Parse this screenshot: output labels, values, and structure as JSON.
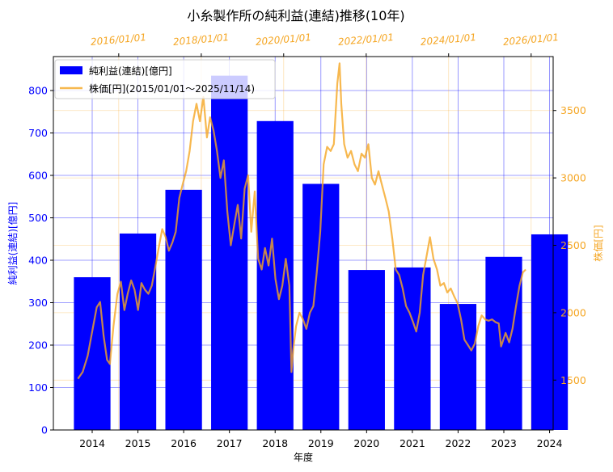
{
  "chart_data": {
    "type": "bar+line",
    "title": "小糸製作所の純利益(連結)推移(10年)",
    "xlabel": "年度",
    "ylabel_left": "純利益(連結)[億円]",
    "ylabel_right": "株価[円]",
    "categories": [
      "2014",
      "2015",
      "2016",
      "2017",
      "2018",
      "2019",
      "2020",
      "2021",
      "2022",
      "2023",
      "2024"
    ],
    "ylim_left": [
      0,
      880
    ],
    "yticks_left": [
      0,
      100,
      200,
      300,
      400,
      500,
      600,
      700,
      800
    ],
    "ylim_right": [
      1130,
      3900
    ],
    "yticks_right": [
      1500,
      2000,
      2500,
      3000,
      3500
    ],
    "top_date_ticks": [
      "2016/01/01",
      "2018/01/01",
      "2020/01/01",
      "2022/01/01",
      "2024/01/01",
      "2026/01/01"
    ],
    "grid": true,
    "legend_position": "top-left",
    "series": [
      {
        "name": "純利益(連結)[億円]",
        "type": "bar",
        "color": "#0000ff",
        "values": [
          360,
          463,
          566,
          835,
          728,
          580,
          377,
          383,
          297,
          408,
          461
        ]
      },
      {
        "name": "株価[円](2015/01/01〜2025/11/14)",
        "type": "line",
        "color": "#f5a623",
        "points": [
          [
            "2015/01/05",
            1510
          ],
          [
            "2015/02/15",
            1560
          ],
          [
            "2015/04/01",
            1680
          ],
          [
            "2015/05/15",
            1880
          ],
          [
            "2015/06/20",
            2040
          ],
          [
            "2015/07/20",
            2080
          ],
          [
            "2015/08/20",
            1830
          ],
          [
            "2015/09/20",
            1650
          ],
          [
            "2015/10/15",
            1620
          ],
          [
            "2015/11/15",
            1900
          ],
          [
            "2015/12/20",
            2140
          ],
          [
            "2016/01/20",
            2230
          ],
          [
            "2016/02/20",
            2020
          ],
          [
            "2016/03/20",
            2140
          ],
          [
            "2016/04/20",
            2240
          ],
          [
            "2016/05/20",
            2170
          ],
          [
            "2016/06/20",
            2020
          ],
          [
            "2016/07/20",
            2220
          ],
          [
            "2016/08/20",
            2170
          ],
          [
            "2016/09/20",
            2140
          ],
          [
            "2016/10/20",
            2200
          ],
          [
            "2016/11/20",
            2340
          ],
          [
            "2016/12/20",
            2480
          ],
          [
            "2017/01/20",
            2620
          ],
          [
            "2017/02/20",
            2560
          ],
          [
            "2017/03/20",
            2460
          ],
          [
            "2017/04/20",
            2520
          ],
          [
            "2017/05/20",
            2600
          ],
          [
            "2017/06/20",
            2850
          ],
          [
            "2017/07/20",
            2950
          ],
          [
            "2017/08/20",
            3050
          ],
          [
            "2017/09/20",
            3200
          ],
          [
            "2017/10/20",
            3420
          ],
          [
            "2017/11/20",
            3550
          ],
          [
            "2017/12/20",
            3420
          ],
          [
            "2018/01/20",
            3600
          ],
          [
            "2018/02/20",
            3300
          ],
          [
            "2018/03/20",
            3450
          ],
          [
            "2018/04/20",
            3350
          ],
          [
            "2018/05/20",
            3200
          ],
          [
            "2018/06/20",
            3000
          ],
          [
            "2018/07/20",
            3130
          ],
          [
            "2018/08/20",
            2750
          ],
          [
            "2018/09/20",
            2500
          ],
          [
            "2018/10/20",
            2650
          ],
          [
            "2018/11/20",
            2800
          ],
          [
            "2018/12/20",
            2550
          ],
          [
            "2019/01/20",
            2920
          ],
          [
            "2019/02/20",
            3020
          ],
          [
            "2019/03/20",
            2600
          ],
          [
            "2019/04/20",
            2900
          ],
          [
            "2019/05/20",
            2400
          ],
          [
            "2019/06/20",
            2320
          ],
          [
            "2019/07/20",
            2480
          ],
          [
            "2019/08/20",
            2350
          ],
          [
            "2019/09/20",
            2550
          ],
          [
            "2019/10/20",
            2250
          ],
          [
            "2019/11/20",
            2100
          ],
          [
            "2019/12/20",
            2200
          ],
          [
            "2020/01/20",
            2400
          ],
          [
            "2020/02/20",
            2200
          ],
          [
            "2020/03/10",
            1560
          ],
          [
            "2020/03/25",
            1720
          ],
          [
            "2020/04/20",
            1900
          ],
          [
            "2020/05/20",
            2000
          ],
          [
            "2020/06/20",
            1950
          ],
          [
            "2020/07/20",
            1880
          ],
          [
            "2020/08/20",
            2000
          ],
          [
            "2020/09/20",
            2050
          ],
          [
            "2020/10/20",
            2300
          ],
          [
            "2020/11/20",
            2600
          ],
          [
            "2020/12/20",
            3100
          ],
          [
            "2021/01/20",
            3230
          ],
          [
            "2021/02/20",
            3200
          ],
          [
            "2021/03/20",
            3250
          ],
          [
            "2021/04/20",
            3700
          ],
          [
            "2021/05/10",
            3850
          ],
          [
            "2021/05/25",
            3550
          ],
          [
            "2021/06/20",
            3250
          ],
          [
            "2021/07/20",
            3150
          ],
          [
            "2021/08/20",
            3200
          ],
          [
            "2021/09/20",
            3100
          ],
          [
            "2021/10/20",
            3050
          ],
          [
            "2021/11/20",
            3180
          ],
          [
            "2021/12/20",
            3150
          ],
          [
            "2022/01/20",
            3250
          ],
          [
            "2022/02/20",
            3000
          ],
          [
            "2022/03/20",
            2950
          ],
          [
            "2022/04/20",
            3050
          ],
          [
            "2022/05/20",
            2950
          ],
          [
            "2022/06/20",
            2850
          ],
          [
            "2022/07/20",
            2750
          ],
          [
            "2022/08/20",
            2550
          ],
          [
            "2022/09/20",
            2320
          ],
          [
            "2022/10/20",
            2280
          ],
          [
            "2022/11/20",
            2180
          ],
          [
            "2022/12/20",
            2050
          ],
          [
            "2023/01/20",
            2000
          ],
          [
            "2023/02/20",
            1930
          ],
          [
            "2023/03/20",
            1860
          ],
          [
            "2023/04/20",
            2000
          ],
          [
            "2023/05/20",
            2280
          ],
          [
            "2023/06/20",
            2420
          ],
          [
            "2023/07/20",
            2560
          ],
          [
            "2023/08/20",
            2400
          ],
          [
            "2023/09/20",
            2320
          ],
          [
            "2023/10/20",
            2200
          ],
          [
            "2023/11/20",
            2220
          ],
          [
            "2023/12/20",
            2150
          ],
          [
            "2024/01/20",
            2180
          ],
          [
            "2024/02/20",
            2120
          ],
          [
            "2024/03/20",
            2070
          ],
          [
            "2024/04/20",
            1950
          ],
          [
            "2024/05/20",
            1800
          ],
          [
            "2024/06/20",
            1760
          ],
          [
            "2024/07/20",
            1720
          ],
          [
            "2024/08/20",
            1770
          ],
          [
            "2024/09/20",
            1900
          ],
          [
            "2024/10/20",
            1980
          ],
          [
            "2024/11/20",
            1950
          ],
          [
            "2024/12/20",
            1940
          ],
          [
            "2025/01/20",
            1950
          ],
          [
            "2025/02/20",
            1930
          ],
          [
            "2025/03/20",
            1920
          ],
          [
            "2025/04/10",
            1750
          ],
          [
            "2025/05/20",
            1850
          ],
          [
            "2025/06/20",
            1780
          ],
          [
            "2025/07/20",
            1880
          ],
          [
            "2025/08/20",
            2050
          ],
          [
            "2025/09/20",
            2200
          ],
          [
            "2025/10/20",
            2300
          ],
          [
            "2025/11/14",
            2320
          ]
        ]
      }
    ]
  }
}
